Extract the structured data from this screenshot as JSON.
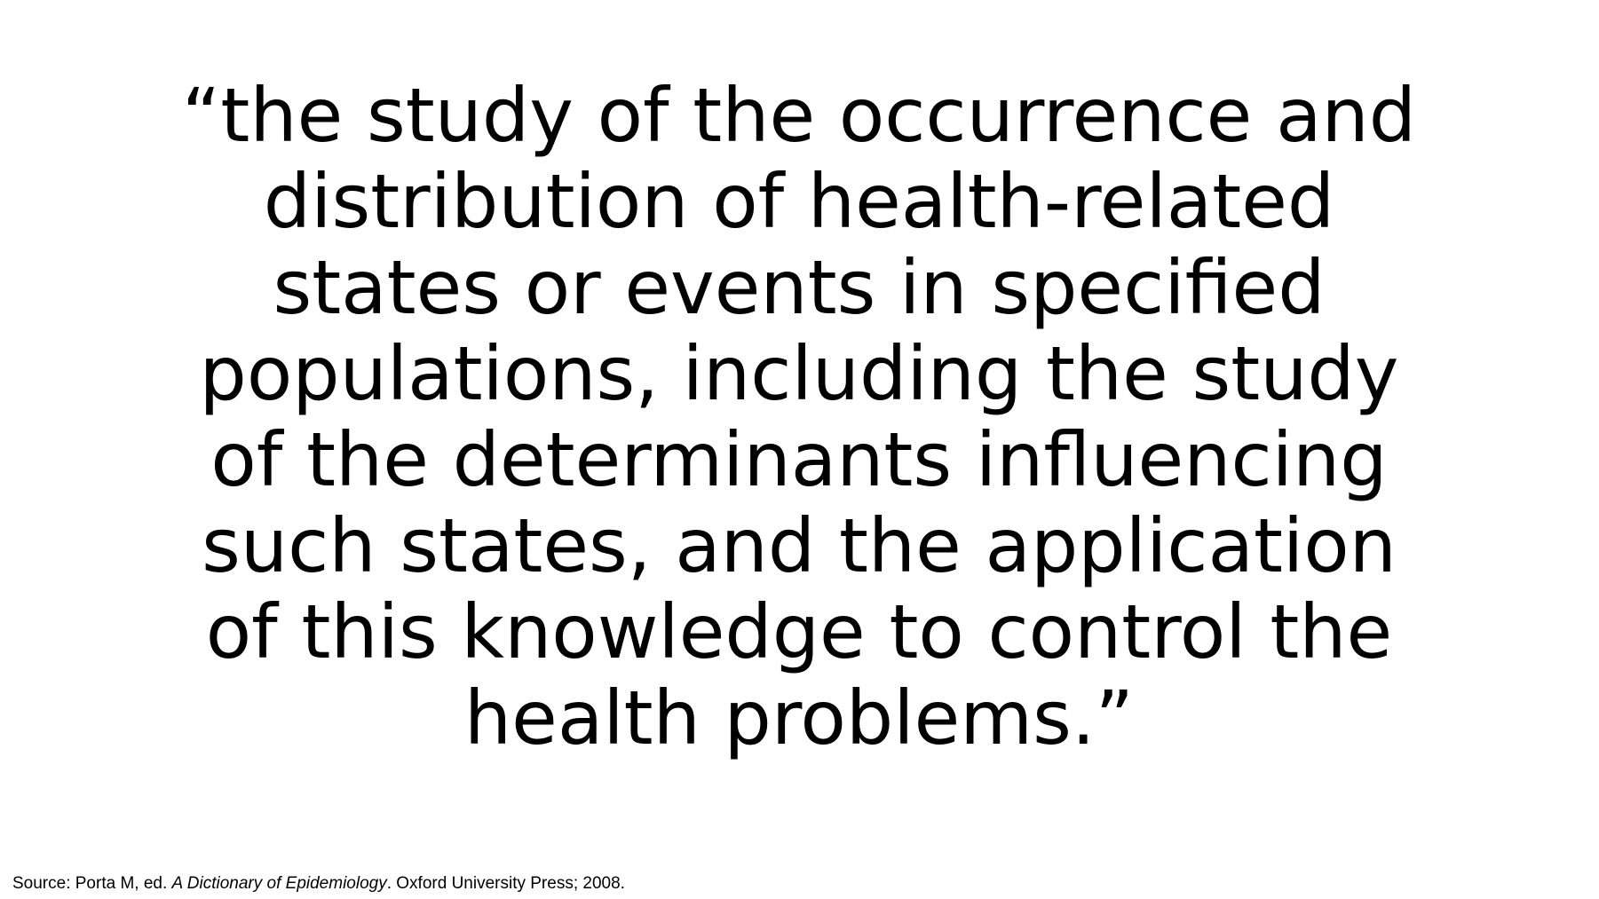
{
  "slide": {
    "quote_lines": [
      "“the study of the occurrence and",
      "distribution of health-related",
      "states or events in specified",
      "populations, including the study",
      "of the determinants influencing",
      "such states, and the application",
      "of this knowledge to control the",
      "health problems.”"
    ],
    "source": {
      "prefix": "Source: Porta M, ed. ",
      "book_title": "A Dictionary of Epidemiology",
      "suffix": ". Oxford University Press; 2008."
    }
  }
}
